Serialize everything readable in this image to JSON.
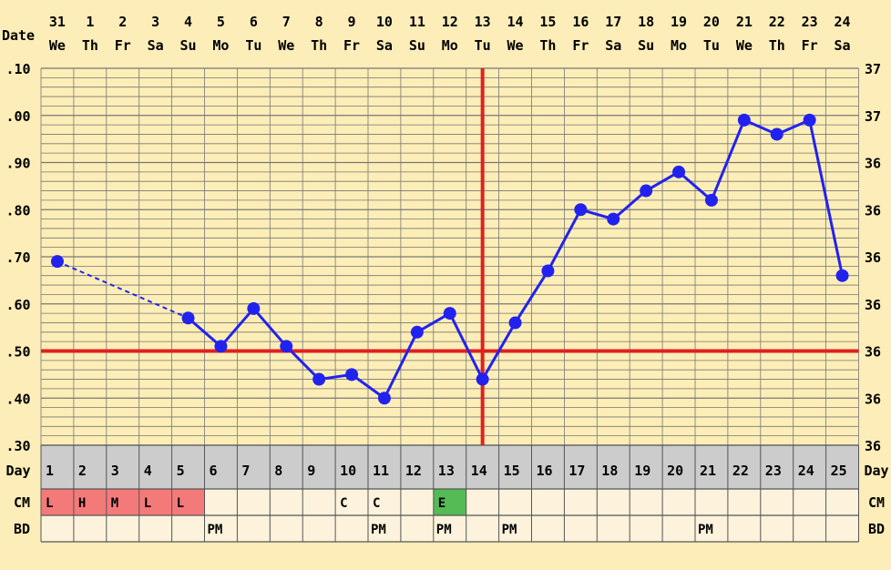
{
  "chart_data": {
    "type": "line",
    "title": "",
    "row_labels": {
      "date": "Date",
      "day": "Day",
      "cm": "CM",
      "bd": "BD"
    },
    "dates": [
      "31",
      "1",
      "2",
      "3",
      "4",
      "5",
      "6",
      "7",
      "8",
      "9",
      "10",
      "11",
      "12",
      "13",
      "14",
      "15",
      "16",
      "17",
      "18",
      "19",
      "20",
      "21",
      "22",
      "23",
      "24"
    ],
    "weekdays": [
      "We",
      "Th",
      "Fr",
      "Sa",
      "Su",
      "Mo",
      "Tu",
      "We",
      "Th",
      "Fr",
      "Sa",
      "Su",
      "Mo",
      "Tu",
      "We",
      "Th",
      "Fr",
      "Sa",
      "Su",
      "Mo",
      "Tu",
      "We",
      "Th",
      "Fr",
      "Sa"
    ],
    "cycle_days": [
      "1",
      "2",
      "3",
      "4",
      "5",
      "6",
      "7",
      "8",
      "9",
      "10",
      "11",
      "12",
      "13",
      "14",
      "15",
      "16",
      "17",
      "18",
      "19",
      "20",
      "21",
      "22",
      "23",
      "24",
      "25"
    ],
    "y_tick_labels_left": [
      ".10",
      ".00",
      ".90",
      ".80",
      ".70",
      ".60",
      ".50",
      ".40",
      ".30"
    ],
    "y_tick_labels_right": [
      "37",
      "37",
      "36",
      "36",
      "36",
      "36",
      "36",
      "36",
      "36"
    ],
    "ylim": [
      0.3,
      1.1
    ],
    "grid": true,
    "series": [
      {
        "color": "#2222ee",
        "x": [
          1,
          5,
          6,
          7,
          8,
          9,
          10,
          11,
          12,
          13,
          14,
          15,
          16,
          17,
          18,
          19,
          20,
          21,
          22,
          23,
          24,
          25
        ],
        "values": [
          0.69,
          0.57,
          0.51,
          0.59,
          0.51,
          0.44,
          0.45,
          0.4,
          0.54,
          0.58,
          0.44,
          0.56,
          0.67,
          0.8,
          0.78,
          0.84,
          0.88,
          0.82,
          0.99,
          0.96,
          0.99,
          0.66
        ],
        "dashed_segments": [
          [
            1,
            5
          ]
        ]
      }
    ],
    "coverline_value": 0.5,
    "ovulation_day": 14,
    "line_color_red": "#e02020",
    "cm_row": [
      "L",
      "H",
      "M",
      "L",
      "L",
      "",
      "",
      "",
      "",
      "C",
      "C",
      "",
      "E",
      "",
      "",
      "",
      "",
      "",
      "",
      "",
      "",
      "",
      "",
      "",
      ""
    ],
    "cm_colors": {
      "L": "#f47a7a",
      "H": "#f47a7a",
      "M": "#f47a7a",
      "E": "#55bb55"
    },
    "bd_row": [
      "",
      "",
      "",
      "",
      "",
      "PM",
      "",
      "",
      "",
      "",
      "PM",
      "",
      "PM",
      "",
      "PM",
      "",
      "",
      "",
      "",
      "",
      "PM",
      "",
      "",
      "",
      ""
    ],
    "colors": {
      "background": "#fdedb8",
      "plot_bg": "#fdeeb7",
      "grid": "#777777",
      "day_row_bg": "#cccccc",
      "cell_bg": "#fdf3dc"
    }
  }
}
